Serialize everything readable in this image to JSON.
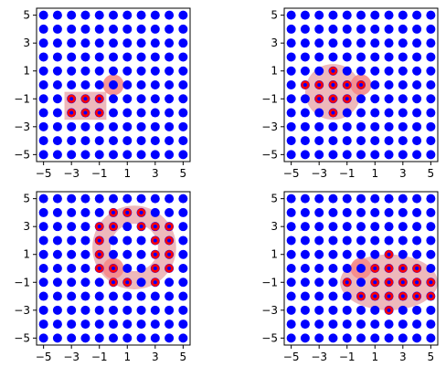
{
  "chart_data": [
    {
      "type": "scatter",
      "panel": "top-left",
      "title": "",
      "xlabel": "",
      "ylabel": "",
      "xlim": [
        -5.5,
        5.5
      ],
      "ylim": [
        -5.5,
        5.5
      ],
      "xticks": [
        "−5",
        "−3",
        "−1",
        "1",
        "3",
        "5"
      ],
      "yticks": [
        "5",
        "3",
        "1",
        "−1",
        "−3",
        "−5"
      ],
      "grid_points": {
        "x_from": -5,
        "x_to": 5,
        "y_from": -5,
        "y_to": 5,
        "step": 1,
        "color": "#0000ff"
      },
      "highlight_points": [
        [
          -3,
          -1
        ],
        [
          -2,
          -1
        ],
        [
          -1,
          -1
        ],
        [
          -3,
          -2
        ],
        [
          -2,
          -2
        ],
        [
          -1,
          -2
        ]
      ],
      "highlight_color": "#ff0000",
      "center": [
        0,
        0
      ],
      "region": {
        "shape": "rectangle",
        "x": [
          -3,
          -1
        ],
        "y": [
          -2,
          -1
        ]
      }
    },
    {
      "type": "scatter",
      "panel": "top-right",
      "title": "",
      "xlabel": "",
      "ylabel": "",
      "xlim": [
        -5.5,
        5.5
      ],
      "ylim": [
        -5.5,
        5.5
      ],
      "xticks": [
        "−5",
        "−3",
        "−1",
        "1",
        "3",
        "5"
      ],
      "yticks": [
        "5",
        "3",
        "1",
        "−1",
        "−3",
        "−5"
      ],
      "grid_points": {
        "x_from": -5,
        "x_to": 5,
        "y_from": -5,
        "y_to": 5,
        "step": 1,
        "color": "#0000ff"
      },
      "highlight_points": [
        [
          -2,
          1
        ],
        [
          -4,
          0
        ],
        [
          -3,
          0
        ],
        [
          -2,
          0
        ],
        [
          -1,
          0
        ],
        [
          -3,
          -1
        ],
        [
          -2,
          -1
        ],
        [
          -1,
          -1
        ],
        [
          -2,
          -2
        ],
        [
          0,
          0
        ]
      ],
      "highlight_color": "#ff0000",
      "center": [
        0,
        0
      ],
      "region": {
        "shape": "circle",
        "cx": -2,
        "cy": -0.5,
        "r": 2
      }
    },
    {
      "type": "scatter",
      "panel": "bottom-left",
      "title": "",
      "xlabel": "",
      "ylabel": "",
      "xlim": [
        -5.5,
        5.5
      ],
      "ylim": [
        -5.5,
        5.5
      ],
      "xticks": [
        "−5",
        "−3",
        "−1",
        "1",
        "3",
        "5"
      ],
      "yticks": [
        "5",
        "3",
        "1",
        "−1",
        "−3",
        "−5"
      ],
      "grid_points": {
        "x_from": -5,
        "x_to": 5,
        "y_from": -5,
        "y_to": 5,
        "step": 1,
        "color": "#0000ff"
      },
      "highlight_points": [
        [
          0,
          4
        ],
        [
          1,
          4
        ],
        [
          2,
          4
        ],
        [
          -1,
          3
        ],
        [
          0,
          3
        ],
        [
          2,
          3
        ],
        [
          3,
          3
        ],
        [
          4,
          3
        ],
        [
          -1,
          2
        ],
        [
          3,
          2
        ],
        [
          4,
          2
        ],
        [
          -1,
          1
        ],
        [
          3,
          1
        ],
        [
          4,
          1
        ],
        [
          -1,
          0
        ],
        [
          0,
          0
        ],
        [
          3,
          0
        ],
        [
          4,
          0
        ],
        [
          0,
          -1
        ],
        [
          1,
          -1
        ],
        [
          3,
          -1
        ]
      ],
      "highlight_color": "#ff0000",
      "center": [
        0,
        0
      ],
      "region": {
        "shape": "annulus",
        "cx": 1.5,
        "cy": 1.5,
        "r_outer": 3,
        "r_inner": 1.7
      }
    },
    {
      "type": "scatter",
      "panel": "bottom-right",
      "title": "",
      "xlabel": "",
      "ylabel": "",
      "xlim": [
        -5.5,
        5.5
      ],
      "ylim": [
        -5.5,
        5.5
      ],
      "xticks": [
        "−5",
        "−3",
        "−1",
        "1",
        "3",
        "5"
      ],
      "yticks": [
        "5",
        "3",
        "1",
        "−1",
        "−3",
        "−5"
      ],
      "grid_points": {
        "x_from": -5,
        "x_to": 5,
        "y_from": -5,
        "y_to": 5,
        "step": 1,
        "color": "#0000ff"
      },
      "highlight_points": [
        [
          2,
          1
        ],
        [
          1,
          0
        ],
        [
          2,
          0
        ],
        [
          3,
          0
        ],
        [
          4,
          0
        ],
        [
          -1,
          -1
        ],
        [
          1,
          -1
        ],
        [
          2,
          -1
        ],
        [
          3,
          -1
        ],
        [
          4,
          -1
        ],
        [
          5,
          -1
        ],
        [
          0,
          -2
        ],
        [
          1,
          -2
        ],
        [
          2,
          -2
        ],
        [
          3,
          -2
        ],
        [
          4,
          -2
        ],
        [
          5,
          -2
        ],
        [
          2,
          -3
        ]
      ],
      "highlight_color": "#ff0000",
      "center": [
        0,
        0
      ],
      "region": {
        "shape": "ellipse",
        "cx": 2,
        "cy": -1,
        "rx": 3.5,
        "ry": 2
      }
    }
  ],
  "colors": {
    "point": "#0000ff",
    "highlight": "#ff0000",
    "region_fill": "#e8a0a4",
    "center_fill": "#f58a8a"
  }
}
